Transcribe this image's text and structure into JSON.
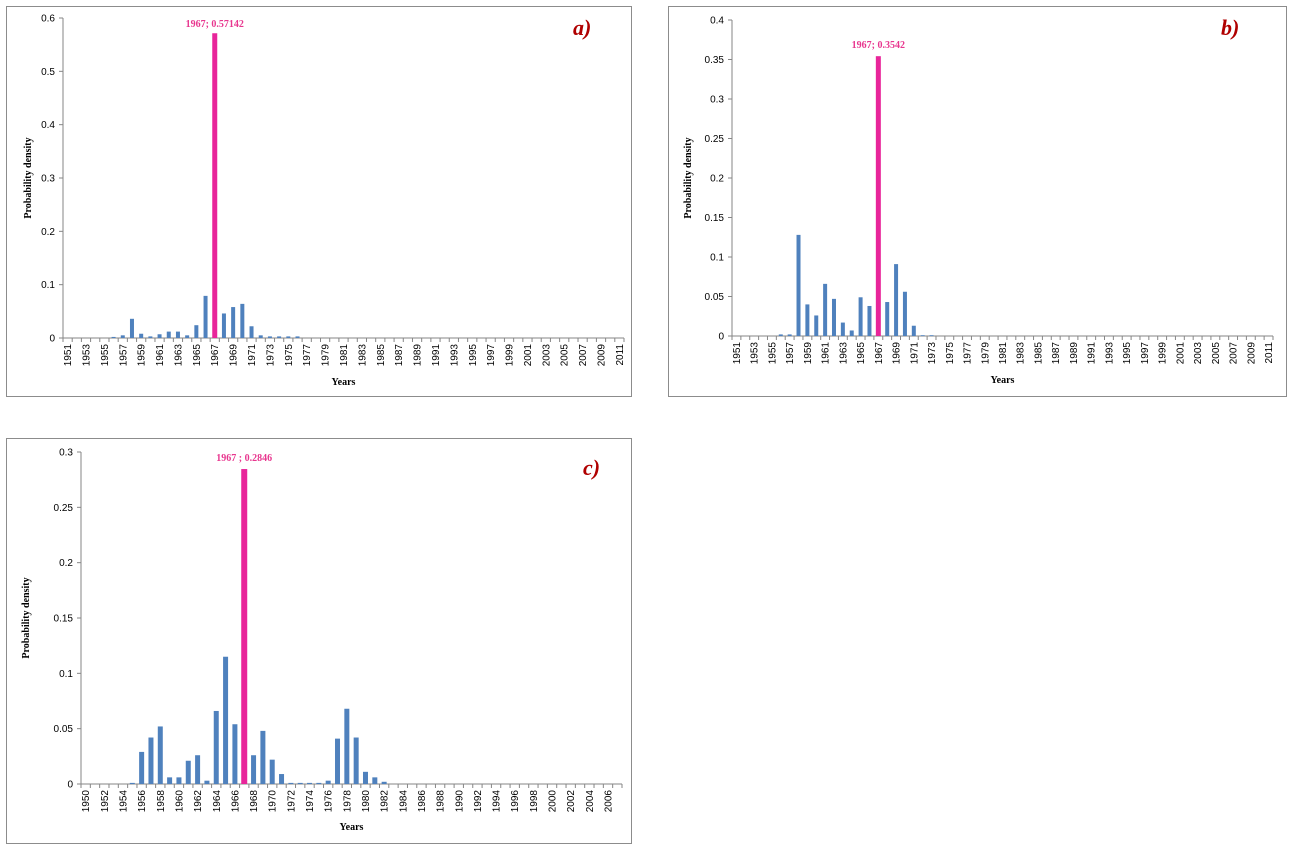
{
  "colors": {
    "bar": "#4f81bd",
    "peak": "#e8259a",
    "panel_tag": "#b00000",
    "peak_label": "#e8378f"
  },
  "chart_data": [
    {
      "type": "bar",
      "panel_tag": "a)",
      "annotation": "1967;  0.57142",
      "xlabel": "Years",
      "ylabel": "Probability density",
      "ylim": [
        0,
        0.6
      ],
      "yticks": [
        "0",
        "0.1",
        "0.2",
        "0.3",
        "0.4",
        "0.5",
        "0.6"
      ],
      "year_start": 1951,
      "year_end": 2011,
      "xtick_labels": [
        "1951",
        "1953",
        "1955",
        "1957",
        "1959",
        "1961",
        "1963",
        "1965",
        "1967",
        "1969",
        "1971",
        "1973",
        "1975",
        "1977",
        "1979",
        "1981",
        "1983",
        "1985",
        "1987",
        "1989",
        "1991",
        "1993",
        "1995",
        "1997",
        "1999",
        "2001",
        "2003",
        "2005",
        "2007",
        "2009",
        "2011"
      ],
      "peak_year": 1967,
      "years": [
        1956,
        1957,
        1958,
        1959,
        1960,
        1961,
        1962,
        1963,
        1964,
        1965,
        1966,
        1967,
        1968,
        1969,
        1970,
        1971,
        1972,
        1973,
        1974,
        1975,
        1976
      ],
      "values": [
        0.002,
        0.005,
        0.036,
        0.008,
        0.003,
        0.007,
        0.012,
        0.012,
        0.005,
        0.024,
        0.079,
        0.57142,
        0.046,
        0.058,
        0.064,
        0.022,
        0.005,
        0.003,
        0.003,
        0.003,
        0.003
      ]
    },
    {
      "type": "bar",
      "panel_tag": "b)",
      "annotation": "1967; 0.3542",
      "xlabel": "Years",
      "ylabel": "Probability density",
      "ylim": [
        0,
        0.4
      ],
      "yticks": [
        "0",
        "0.05",
        "0.1",
        "0.15",
        "0.2",
        "0.25",
        "0.3",
        "0.35",
        "0.4"
      ],
      "year_start": 1951,
      "year_end": 2011,
      "xtick_labels": [
        "1951",
        "1953",
        "1955",
        "1957",
        "1959",
        "1961",
        "1963",
        "1965",
        "1967",
        "1969",
        "1971",
        "1973",
        "1975",
        "1977",
        "1979",
        "1981",
        "1983",
        "1985",
        "1987",
        "1989",
        "1991",
        "1993",
        "1995",
        "1997",
        "1999",
        "2001",
        "2003",
        "2005",
        "2007",
        "2009",
        "2011"
      ],
      "peak_year": 1967,
      "years": [
        1956,
        1957,
        1958,
        1959,
        1960,
        1961,
        1962,
        1963,
        1964,
        1965,
        1966,
        1967,
        1968,
        1969,
        1970,
        1971,
        1972,
        1973
      ],
      "values": [
        0.002,
        0.002,
        0.128,
        0.04,
        0.026,
        0.066,
        0.047,
        0.017,
        0.007,
        0.049,
        0.038,
        0.3542,
        0.043,
        0.091,
        0.056,
        0.013,
        0.001,
        0.001
      ]
    },
    {
      "type": "bar",
      "panel_tag": "c)",
      "annotation": "1967 ;  0.2846",
      "xlabel": "Years",
      "ylabel": "Probability density",
      "ylim": [
        0,
        0.3
      ],
      "yticks": [
        "0",
        "0.05",
        "0.1",
        "0.15",
        "0.2",
        "0.25",
        "0.3"
      ],
      "year_start": 1950,
      "year_end": 2007,
      "xtick_labels": [
        "1950",
        "1952",
        "1954",
        "1956",
        "1958",
        "1960",
        "1962",
        "1964",
        "1966",
        "1968",
        "1970",
        "1972",
        "1974",
        "1976",
        "1978",
        "1980",
        "1982",
        "1984",
        "1986",
        "1988",
        "1990",
        "1992",
        "1994",
        "1996",
        "1998",
        "2000",
        "2002",
        "2004",
        "2006"
      ],
      "peak_year": 1967,
      "years": [
        1955,
        1956,
        1957,
        1958,
        1959,
        1960,
        1961,
        1962,
        1963,
        1964,
        1965,
        1966,
        1967,
        1968,
        1969,
        1970,
        1971,
        1972,
        1973,
        1974,
        1975,
        1976,
        1977,
        1978,
        1979,
        1980,
        1981,
        1982
      ],
      "values": [
        0.001,
        0.029,
        0.042,
        0.052,
        0.006,
        0.006,
        0.021,
        0.026,
        0.003,
        0.066,
        0.115,
        0.054,
        0.2846,
        0.026,
        0.048,
        0.022,
        0.009,
        0.001,
        0.001,
        0.001,
        0.001,
        0.003,
        0.041,
        0.068,
        0.042,
        0.011,
        0.006,
        0.002
      ]
    }
  ]
}
